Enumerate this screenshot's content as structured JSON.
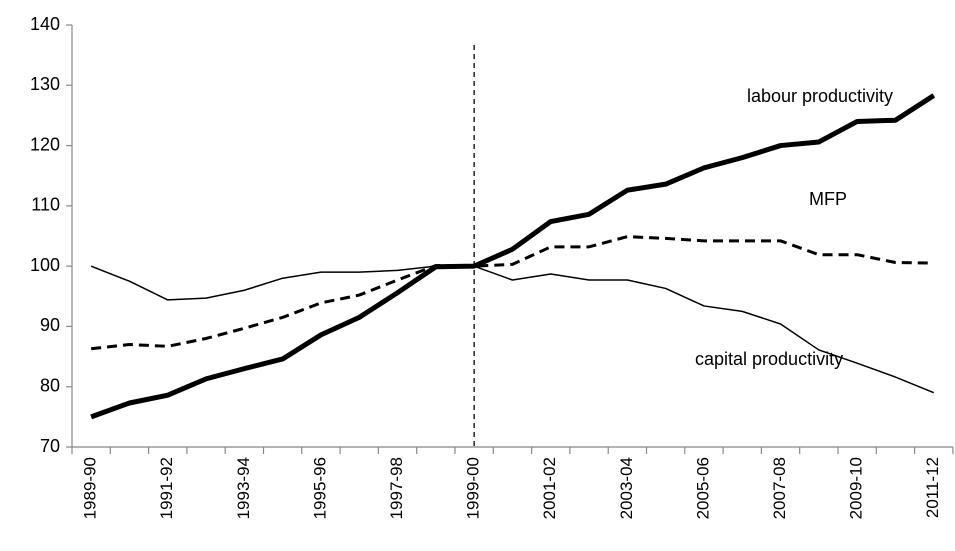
{
  "chart_data": {
    "type": "line",
    "categories": [
      "1989-90",
      null,
      "1991-92",
      null,
      "1993-94",
      null,
      "1995-96",
      null,
      "1997-98",
      null,
      "1999-00",
      null,
      "2001-02",
      null,
      "2003-04",
      null,
      "2005-06",
      null,
      "2007-08",
      null,
      "2009-10",
      null,
      "2011-12"
    ],
    "series": [
      {
        "name": "labour productivity",
        "color": "#000000",
        "style": "solid",
        "width": 5,
        "values": [
          75,
          77.3,
          78.6,
          81.3,
          83,
          84.6,
          88.6,
          91.5,
          95.6,
          99.9,
          100,
          102.8,
          107.4,
          108.6,
          112.6,
          113.6,
          116.3,
          118,
          120,
          120.6,
          124,
          124.2,
          128.3
        ]
      },
      {
        "name": "MFP",
        "color": "#000000",
        "style": "dashed",
        "width": 3,
        "values": [
          86.3,
          87,
          86.7,
          88,
          89.7,
          91.5,
          93.9,
          95.2,
          97.7,
          100.1,
          100,
          100.3,
          103.2,
          103.2,
          104.9,
          104.6,
          104.2,
          104.2,
          104.2,
          101.9,
          101.9,
          100.6,
          100.5
        ]
      },
      {
        "name": "capital productivity",
        "color": "#000000",
        "style": "solid",
        "width": 1.5,
        "values": [
          100,
          97.5,
          94.4,
          94.7,
          96,
          98,
          99,
          99,
          99.3,
          100,
          100,
          97.7,
          98.7,
          97.7,
          97.7,
          96.3,
          93.4,
          92.5,
          90.4,
          86.1,
          83.9,
          81.6,
          79
        ]
      }
    ],
    "reference_category_index": 10,
    "ylim": [
      70,
      140
    ],
    "yticks": [
      70,
      80,
      90,
      100,
      110,
      120,
      130,
      140
    ],
    "grid": false
  }
}
